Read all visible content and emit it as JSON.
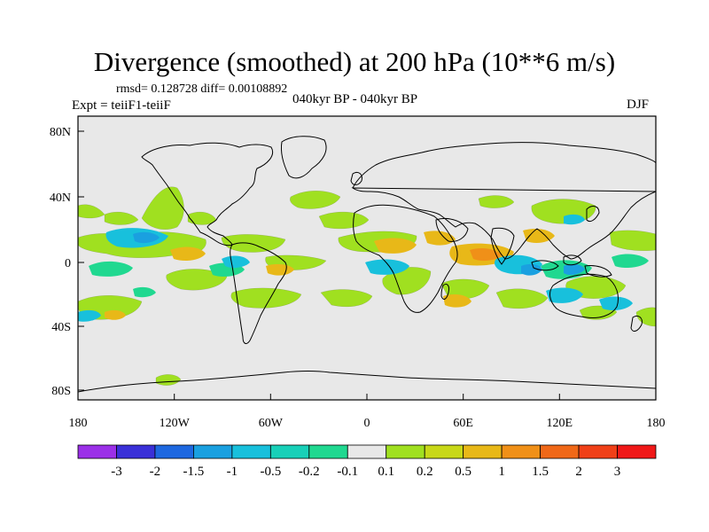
{
  "title": "Divergence (smoothed) at 200 hPa (10**6 m/s)",
  "stats": "rmsd= 0.128728 diff= 0.00108892",
  "experiment": "Expt = teiiF1-teiiF",
  "period": "040kyr BP - 040kyr BP",
  "season": "DJF",
  "map": {
    "lat_ticks": [
      "80N",
      "40N",
      "0",
      "40S",
      "80S"
    ],
    "lon_ticks": [
      "180",
      "120W",
      "60W",
      "0",
      "60E",
      "120E",
      "180"
    ],
    "background_color": "#e8e8e8"
  },
  "colorbar": {
    "labels": [
      "-3",
      "-2",
      "-1.5",
      "-1",
      "-0.5",
      "-0.2",
      "-0.1",
      "0.1",
      "0.2",
      "0.5",
      "1",
      "1.5",
      "2",
      "3"
    ],
    "colors": [
      "#9b30e8",
      "#3a30d8",
      "#1e68e0",
      "#1aa0e0",
      "#18c0dc",
      "#18d0b8",
      "#20d890",
      "#e8e8e8",
      "#a0e020",
      "#c8d818",
      "#e8b818",
      "#f09018",
      "#f06818",
      "#f04018",
      "#f01818"
    ]
  }
}
